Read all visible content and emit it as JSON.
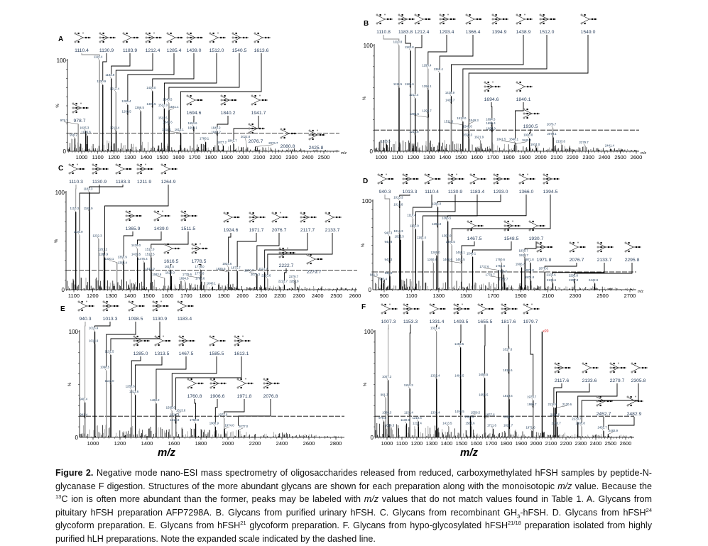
{
  "figure": {
    "x_axis_title": "m/z",
    "caption": [
      {
        "t": "Figure 2.",
        "b": true
      },
      {
        "t": " Negative mode nano-ESI mass spectrometry of oligosaccharides released from reduced, carboxymethylated hFSH samples by peptide-N-glycanase F digestion. Structures of the more abundant glycans are shown for each preparation along with the monoisotopic "
      },
      {
        "t": "m/z",
        "i": true
      },
      {
        "t": " value. Because the "
      },
      {
        "t": "13",
        "sup": true
      },
      {
        "t": "C ion is often more abundant than the former, peaks may be labeled with "
      },
      {
        "t": "m/z",
        "i": true
      },
      {
        "t": " values that do not match values found in Table 1. A. Glycans from pituitary hFSH preparation AFP7298A. B. Glycans from purified urinary hFSH. C. Glycans from recombinant GH"
      },
      {
        "t": "3",
        "sub": true
      },
      {
        "t": "-hFSH. D. Glycans from hFSH"
      },
      {
        "t": "24",
        "sup": true
      },
      {
        "t": " glycoform preparation. E. Glycans from hFSH"
      },
      {
        "t": "21",
        "sup": true
      },
      {
        "t": " glycoform preparation. F. Glycans from hypo-glycosylated hFSH"
      },
      {
        "t": "21/18",
        "sup": true
      },
      {
        "t": " preparation isolated from highly purified hLH preparations. Note the expanded scale indicated by the dashed line."
      }
    ]
  },
  "chart_data": [
    {
      "panel": "A",
      "type": "bar",
      "ylabel": "%",
      "y_ticks": [
        "0",
        "100"
      ],
      "ylim": [
        0,
        100
      ],
      "xlim": [
        910,
        2600
      ],
      "x_ticks": [
        1000,
        1100,
        1200,
        1300,
        1400,
        1500,
        1600,
        1700,
        1800,
        1900,
        2000,
        2100,
        2200,
        2300,
        2400,
        2500
      ],
      "x_unit_label": "m/z",
      "expanded_scale_pct": 20,
      "peaks": [
        [
          "958.2",
          14
        ],
        [
          "978.7",
          30
        ],
        [
          "1025.3",
          22
        ],
        [
          "1035.8",
          17
        ],
        [
          "1110.4",
          100
        ],
        [
          "1130.9",
          73
        ],
        [
          "1183.9",
          80
        ],
        [
          "1212.4",
          65
        ],
        [
          "1213.4",
          22
        ],
        [
          "1285.4",
          51
        ],
        [
          "1286.5",
          40
        ],
        [
          "1366.5",
          44
        ],
        [
          "1439.0",
          66
        ],
        [
          "1439.5",
          48
        ],
        [
          "1511.5",
          33
        ],
        [
          "1512.0",
          47
        ],
        [
          "1540.5",
          53
        ],
        [
          "1541.1",
          45
        ],
        [
          "1541.6",
          28
        ],
        [
          "1613.1",
          20
        ],
        [
          "1614.1",
          20
        ],
        [
          "1694.6",
          27
        ],
        [
          "1695.1",
          22
        ],
        [
          "1768.1",
          10
        ],
        [
          "1840.2",
          22
        ],
        [
          "1841.2",
          17
        ],
        [
          "1877.2",
          6
        ],
        [
          "1941.7",
          8
        ],
        [
          "2022.8",
          5
        ],
        [
          "2076.7",
          5
        ]
      ],
      "structures": [
        "1110.4",
        "1130.9",
        "1183.9",
        "1212.4",
        "1285.4",
        "1439.0",
        "1512.0",
        "1540.5",
        "1613.6",
        "978.7",
        "1694.6",
        "1840.2",
        "1941.7",
        "2076.7",
        "2080.8",
        "2425.8"
      ]
    },
    {
      "panel": "B",
      "type": "bar",
      "ylabel": "%",
      "y_ticks": [
        "0",
        "100"
      ],
      "ylim": [
        0,
        100
      ],
      "xlim": [
        920,
        2680
      ],
      "x_ticks": [
        1000,
        1100,
        1200,
        1300,
        1400,
        1500,
        1600,
        1700,
        1800,
        1900,
        2000,
        2100,
        2200,
        2300,
        2400,
        2500,
        2600
      ],
      "x_unit_label": "m/z",
      "expanded_scale_pct": 20,
      "peaks": [
        [
          "1035.5",
          6
        ],
        [
          "1110.8",
          100
        ],
        [
          "1111.5",
          60
        ],
        [
          "1183.8",
          95
        ],
        [
          "1184.6",
          60
        ],
        [
          "1212.4",
          50
        ],
        [
          "1213.6",
          15
        ],
        [
          "1293.4",
          78
        ],
        [
          "1294.1",
          58
        ],
        [
          "1294.7",
          35
        ],
        [
          "1295.6",
          32
        ],
        [
          "1366.4",
          74
        ],
        [
          "1438.9",
          52
        ],
        [
          "1439.7",
          45
        ],
        [
          "1511.6",
          25
        ],
        [
          "1512.0",
          28
        ],
        [
          "1549.3",
          26
        ],
        [
          "1549.0",
          20
        ],
        [
          "1550.3",
          12
        ],
        [
          "1621.9",
          10
        ],
        [
          "1694.5",
          27
        ],
        [
          "1695.4",
          23
        ],
        [
          "1695.9",
          18
        ],
        [
          "1840.0",
          7
        ],
        [
          "1840.1",
          8
        ],
        [
          "1841.5",
          8
        ],
        [
          "1930.0",
          12
        ],
        [
          "1974.0",
          3
        ],
        [
          "2076.7",
          22
        ],
        [
          "2079.1",
          13
        ],
        [
          "2133.6",
          6
        ],
        [
          "2279.7",
          5
        ],
        [
          "2441.4",
          2
        ]
      ],
      "structures": [
        "1110.8",
        "1183.8",
        "1212.4",
        "1293.4",
        "1366.4",
        "1394.9",
        "1438.9",
        "1512.0",
        "1549.0",
        "1694.6",
        "1840.1",
        "1930.5"
      ]
    },
    {
      "panel": "C",
      "type": "bar",
      "ylabel": "%",
      "y_ticks": [
        "0",
        "100"
      ],
      "ylim": [
        0,
        100
      ],
      "xlim": [
        1040,
        2620
      ],
      "x_ticks": [
        1100,
        1200,
        1300,
        1400,
        1500,
        1600,
        1700,
        1800,
        1900,
        2000,
        2100,
        2200,
        2300,
        2400,
        2500,
        2600
      ],
      "expanded_scale_pct": 20,
      "peaks": [
        [
          "1110.3",
          80
        ],
        [
          "1130.9",
          56
        ],
        [
          "1183.3",
          100
        ],
        [
          "1183.9",
          80
        ],
        [
          "1232.3",
          52
        ],
        [
          "1261.2",
          38
        ],
        [
          "1264.9",
          33
        ],
        [
          "1330.1",
          28
        ],
        [
          "1365.9",
          30
        ],
        [
          "1366.4",
          24
        ],
        [
          "1439.0",
          42
        ],
        [
          "1439.5",
          33
        ],
        [
          "1475.4",
          28
        ],
        [
          "1512.0",
          38
        ],
        [
          "1512.5",
          33
        ],
        [
          "1513.0",
          18
        ],
        [
          "1583.6",
          12
        ],
        [
          "1616.5",
          20
        ],
        [
          "1620.0",
          14
        ],
        [
          "1694.6",
          8
        ],
        [
          "1777.6",
          13
        ],
        [
          "1778.0",
          20
        ],
        [
          "1779.6",
          12
        ],
        [
          "1780.6",
          8
        ],
        [
          "1840.1",
          3
        ],
        [
          "1924.6",
          23
        ],
        [
          "1925.5",
          18
        ],
        [
          "1971.7",
          19
        ],
        [
          "2075.3",
          12
        ],
        [
          "2076.7",
          16
        ],
        [
          "2117.7",
          18
        ],
        [
          "2133.6",
          11
        ],
        [
          "2222.7",
          5
        ],
        [
          "2279.7",
          10
        ],
        [
          "2281.8",
          5
        ]
      ],
      "structures": [
        "1110.3",
        "1130.9",
        "1183.3",
        "1211.9",
        "1264.9",
        "1365.9",
        "1439.0",
        "1511.5",
        "1616.5",
        "1778.5",
        "1924.6",
        "1971.7",
        "2076.7",
        "2117.7",
        "2133.7",
        "2222.7",
        "2279.7"
      ]
    },
    {
      "panel": "D",
      "type": "bar",
      "ylabel": "%",
      "y_ticks": [
        "0",
        "100"
      ],
      "ylim": [
        0,
        100
      ],
      "xlim": [
        820,
        2780
      ],
      "x_ticks": [
        900,
        1100,
        1300,
        1500,
        1700,
        1900,
        2100,
        2300,
        2500,
        2700
      ],
      "x_unit_label": "m/z",
      "expanded_scale_pct": 20,
      "peaks": [
        [
          "881.3",
          13
        ],
        [
          "903.4",
          8
        ],
        [
          "940.3",
          60
        ],
        [
          "940.8",
          50
        ],
        [
          "941.3",
          30
        ],
        [
          "941.8",
          15
        ],
        [
          "1013.3",
          100
        ],
        [
          "1013.8",
          92
        ],
        [
          "1014.3",
          62
        ],
        [
          "1020.3",
          56
        ],
        [
          "1110.4",
          80
        ],
        [
          "1130.9",
          68
        ],
        [
          "1183.4",
          55
        ],
        [
          "1260.8",
          30
        ],
        [
          "1285.0",
          38
        ],
        [
          "1293.0",
          93
        ],
        [
          "1294.0",
          70
        ],
        [
          "1366.5",
          77
        ],
        [
          "1367.0",
          57
        ],
        [
          "1395.5",
          50
        ],
        [
          "1467.5",
          30
        ],
        [
          "1468.1",
          38
        ],
        [
          "1468.6",
          30
        ],
        [
          "1548.1",
          37
        ],
        [
          "1737.6",
          22
        ],
        [
          "1760.6",
          30
        ],
        [
          "1761.6",
          23
        ],
        [
          "1776.6",
          17
        ],
        [
          "1779.7",
          13
        ],
        [
          "1782.7",
          8
        ],
        [
          "1906.7",
          25
        ],
        [
          "1930.7",
          40
        ],
        [
          "1931.7",
          35
        ],
        [
          "1971.8",
          30
        ],
        [
          "1972.8",
          18
        ],
        [
          "1974.8",
          10
        ],
        [
          "2076.6",
          20
        ],
        [
          "2133.6",
          13
        ],
        [
          "2135.6",
          7
        ],
        [
          "2295.8",
          12
        ],
        [
          "2297.8",
          7
        ],
        [
          "2442.9",
          7
        ]
      ],
      "structures": [
        "940.3",
        "1013.3",
        "1110.4",
        "1130.9",
        "1183.4",
        "1293.0",
        "1366.0",
        "1394.5",
        "1467.5",
        "1548.5",
        "1930.7",
        "1971.8",
        "2076.7",
        "2133.7",
        "2295.8"
      ]
    },
    {
      "panel": "E",
      "type": "bar",
      "ylabel": "%",
      "y_ticks": [
        "0",
        "100"
      ],
      "ylim": [
        0,
        100
      ],
      "xlim": [
        930,
        2870
      ],
      "x_ticks": [
        1000,
        1200,
        1400,
        1600,
        1800,
        2000,
        2200,
        2400,
        2600,
        2800
      ],
      "expanded_scale_pct": 20,
      "peaks": [
        [
          "940.4",
          33
        ],
        [
          "941.4",
          18
        ],
        [
          "1013.4",
          100
        ],
        [
          "1013.9",
          88
        ],
        [
          "1098.5",
          63
        ],
        [
          "1131.5",
          78
        ],
        [
          "1132.0",
          50
        ],
        [
          "1285.6",
          45
        ],
        [
          "1313.6",
          40
        ],
        [
          "1468.2",
          32
        ],
        [
          "1585.6",
          25
        ],
        [
          "1613.6",
          22
        ],
        [
          "1614.3",
          18
        ],
        [
          "1614.8",
          13
        ],
        [
          "1760.8",
          13
        ],
        [
          "1906.9",
          10
        ],
        [
          "1972.0",
          18
        ],
        [
          "1974.0",
          8
        ],
        [
          "2077.0",
          7
        ]
      ],
      "structures": [
        "940.3",
        "1013.3",
        "1098.5",
        "1130.9",
        "1183.4",
        "1285.0",
        "1313.5",
        "1467.5",
        "1585.5",
        "1613.1",
        "1760.8",
        "1906.6",
        "1971.8",
        "2076.8"
      ]
    },
    {
      "panel": "F",
      "type": "bar",
      "ylabel": "%",
      "y_ticks": [
        "0",
        "100"
      ],
      "ylim": [
        0,
        100
      ],
      "xlim": [
        910,
        2700
      ],
      "x_ticks": [
        1000,
        1100,
        1200,
        1300,
        1400,
        1500,
        1600,
        1700,
        1800,
        1900,
        2000,
        2100,
        2200,
        2300,
        2400,
        2500,
        2600
      ],
      "expanded_scale_pct": 20,
      "scale_annotation": {
        "text": "x20",
        "mz": 2040,
        "color": "#e02020"
      },
      "peaks": [
        [
          "978.8",
          15
        ],
        [
          "991.3",
          37
        ],
        [
          "1007.3",
          54
        ],
        [
          "1008.3",
          20
        ],
        [
          "1026.3",
          8
        ],
        [
          "1130.9",
          13
        ],
        [
          "1153.3",
          46
        ],
        [
          "1154.4",
          20
        ],
        [
          "1210.4",
          15
        ],
        [
          "1211.4",
          10
        ],
        [
          "1331.4",
          100
        ],
        [
          "1332.4",
          55
        ],
        [
          "1333.4",
          20
        ],
        [
          "1413.5",
          10
        ],
        [
          "1493.5",
          85
        ],
        [
          "1494.5",
          55
        ],
        [
          "1495.5",
          21
        ],
        [
          "1559.5",
          20
        ],
        [
          "1560.5",
          16
        ],
        [
          "1566.6",
          10
        ],
        [
          "1655.5",
          56
        ],
        [
          "1656.5",
          37
        ],
        [
          "1657.6",
          18
        ],
        [
          "1711.6",
          8
        ],
        [
          "1817.6",
          80
        ],
        [
          "1818.6",
          60
        ],
        [
          "1819.6",
          36
        ],
        [
          "1820.6",
          16
        ],
        [
          "1821.7",
          8
        ],
        [
          "1971.6",
          6
        ],
        [
          "1979.7",
          35
        ],
        [
          "1980.7",
          28
        ],
        [
          "2118.6",
          28
        ],
        [
          "2130.6",
          28
        ],
        [
          "2135.6",
          18
        ],
        [
          "2143.7",
          10
        ],
        [
          "2279.7",
          14
        ],
        [
          "2305.8",
          10
        ],
        [
          "2452.7",
          6
        ],
        [
          "2482.9",
          3
        ]
      ],
      "structures": [
        "1007.3",
        "1153.3",
        "1331.4",
        "1493.5",
        "1655.5",
        "1817.6",
        "1979.7",
        "2117.6",
        "2133.6",
        "2279.7",
        "2305.8",
        "2452.7",
        "2482.9"
      ]
    }
  ]
}
